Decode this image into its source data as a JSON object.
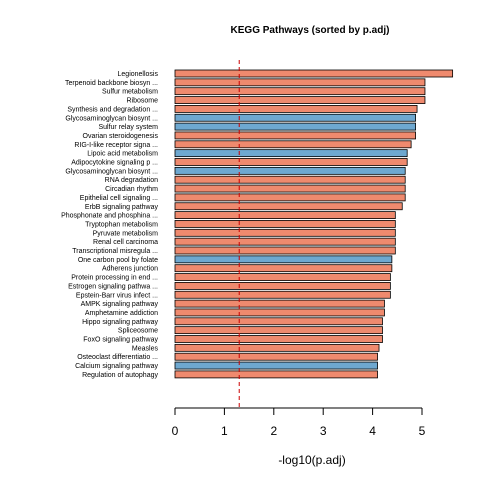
{
  "chart_data": {
    "type": "bar",
    "orientation": "horizontal",
    "title": "KEGG Pathways (sorted by p.adj)",
    "xlabel": "-log10(p.adj)",
    "ylabel": "",
    "xlim": [
      0,
      5.6
    ],
    "xticks": [
      0,
      1,
      2,
      3,
      4,
      5
    ],
    "threshold_line": {
      "value": 1.3,
      "color": "#cc0000",
      "style": "dashed"
    },
    "colors": {
      "salmon": "#ef8a6e",
      "blue": "#6ea8d0",
      "outline": "#000000"
    },
    "categories": [
      "Legionellosis",
      "Terpenoid backbone biosyn ...",
      "Sulfur metabolism",
      "Ribosome",
      "Synthesis and degradation ...",
      "Glycosaminoglycan biosynt ...",
      "Sulfur relay system",
      "Ovarian steroidogenesis",
      "RIG-I-like receptor signa ...",
      "Lipoic acid metabolism",
      "Adipocytokine signaling p ...",
      "Glycosaminoglycan biosynt ...",
      "RNA degradation",
      "Circadian rhythm",
      "Epithelial cell signaling ...",
      "ErbB signaling pathway",
      "Phosphonate and phosphina ...",
      "Tryptophan metabolism",
      "Pyruvate metabolism",
      "Renal cell carcinoma",
      "Transcriptional misregula ...",
      "One carbon pool by folate",
      "Adherens junction",
      "Protein processing in end ...",
      "Estrogen signaling pathwa ...",
      "Epstein-Barr virus infect ...",
      "AMPK signaling pathway",
      "Amphetamine addiction",
      "Hippo signaling pathway",
      "Spliceosome",
      "FoxO signaling pathway",
      "Measles",
      "Osteoclast differentiatio ...",
      "Calcium signaling pathway",
      "Regulation of autophagy"
    ],
    "values": [
      5.62,
      5.06,
      5.06,
      5.06,
      4.9,
      4.87,
      4.87,
      4.87,
      4.78,
      4.7,
      4.7,
      4.66,
      4.66,
      4.66,
      4.66,
      4.6,
      4.46,
      4.46,
      4.46,
      4.46,
      4.46,
      4.39,
      4.39,
      4.36,
      4.36,
      4.36,
      4.24,
      4.24,
      4.2,
      4.2,
      4.2,
      4.13,
      4.1,
      4.1,
      4.1
    ],
    "bar_colors": [
      "salmon",
      "salmon",
      "salmon",
      "salmon",
      "salmon",
      "blue",
      "blue",
      "salmon",
      "salmon",
      "blue",
      "salmon",
      "blue",
      "salmon",
      "salmon",
      "salmon",
      "salmon",
      "salmon",
      "salmon",
      "salmon",
      "salmon",
      "salmon",
      "blue",
      "salmon",
      "salmon",
      "salmon",
      "salmon",
      "salmon",
      "salmon",
      "salmon",
      "salmon",
      "salmon",
      "salmon",
      "salmon",
      "blue",
      "salmon"
    ]
  }
}
